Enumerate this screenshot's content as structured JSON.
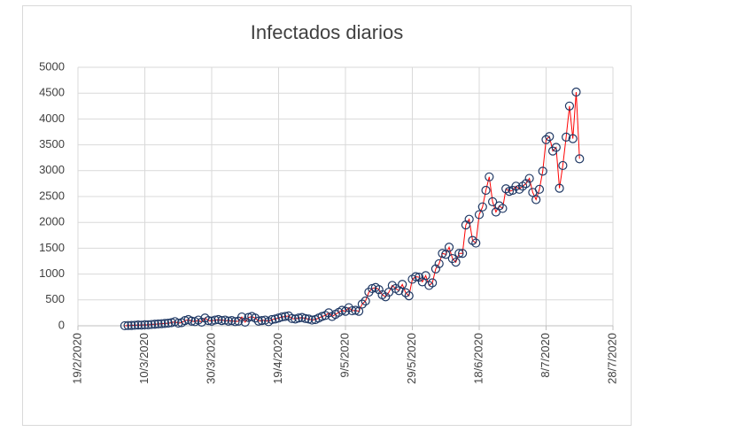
{
  "chart_data": {
    "type": "scatter-line",
    "title": "Infectados diarios",
    "x": [
      "2020-03-04",
      "2020-03-05",
      "2020-03-06",
      "2020-03-07",
      "2020-03-08",
      "2020-03-09",
      "2020-03-10",
      "2020-03-11",
      "2020-03-12",
      "2020-03-13",
      "2020-03-14",
      "2020-03-15",
      "2020-03-16",
      "2020-03-17",
      "2020-03-18",
      "2020-03-19",
      "2020-03-20",
      "2020-03-21",
      "2020-03-22",
      "2020-03-23",
      "2020-03-24",
      "2020-03-25",
      "2020-03-26",
      "2020-03-27",
      "2020-03-28",
      "2020-03-29",
      "2020-03-30",
      "2020-03-31",
      "2020-04-01",
      "2020-04-02",
      "2020-04-03",
      "2020-04-04",
      "2020-04-05",
      "2020-04-06",
      "2020-04-07",
      "2020-04-08",
      "2020-04-09",
      "2020-04-10",
      "2020-04-11",
      "2020-04-12",
      "2020-04-13",
      "2020-04-14",
      "2020-04-15",
      "2020-04-16",
      "2020-04-17",
      "2020-04-18",
      "2020-04-19",
      "2020-04-20",
      "2020-04-21",
      "2020-04-22",
      "2020-04-23",
      "2020-04-24",
      "2020-04-25",
      "2020-04-26",
      "2020-04-27",
      "2020-04-28",
      "2020-04-29",
      "2020-04-30",
      "2020-05-01",
      "2020-05-02",
      "2020-05-03",
      "2020-05-04",
      "2020-05-05",
      "2020-05-06",
      "2020-05-07",
      "2020-05-08",
      "2020-05-09",
      "2020-05-10",
      "2020-05-11",
      "2020-05-12",
      "2020-05-13",
      "2020-05-14",
      "2020-05-15",
      "2020-05-16",
      "2020-05-17",
      "2020-05-18",
      "2020-05-19",
      "2020-05-20",
      "2020-05-21",
      "2020-05-22",
      "2020-05-23",
      "2020-05-24",
      "2020-05-25",
      "2020-05-26",
      "2020-05-27",
      "2020-05-28",
      "2020-05-29",
      "2020-05-30",
      "2020-05-31",
      "2020-06-01",
      "2020-06-02",
      "2020-06-03",
      "2020-06-04",
      "2020-06-05",
      "2020-06-06",
      "2020-06-07",
      "2020-06-08",
      "2020-06-09",
      "2020-06-10",
      "2020-06-11",
      "2020-06-12",
      "2020-06-13",
      "2020-06-14",
      "2020-06-15",
      "2020-06-16",
      "2020-06-17",
      "2020-06-18",
      "2020-06-19",
      "2020-06-20",
      "2020-06-21",
      "2020-06-22",
      "2020-06-23",
      "2020-06-24",
      "2020-06-25",
      "2020-06-26",
      "2020-06-27",
      "2020-06-28",
      "2020-06-29",
      "2020-06-30",
      "2020-07-01",
      "2020-07-02",
      "2020-07-03",
      "2020-07-04",
      "2020-07-05",
      "2020-07-06",
      "2020-07-07",
      "2020-07-08",
      "2020-07-09",
      "2020-07-10",
      "2020-07-11",
      "2020-07-12",
      "2020-07-13",
      "2020-07-14",
      "2020-07-15",
      "2020-07-16",
      "2020-07-17",
      "2020-07-18"
    ],
    "series": [
      {
        "line_color": "#ff0000",
        "marker_color": "#1f3864",
        "values": [
          1,
          5,
          7,
          10,
          15,
          12,
          20,
          18,
          25,
          30,
          35,
          40,
          45,
          50,
          60,
          80,
          50,
          60,
          100,
          120,
          90,
          80,
          110,
          70,
          150,
          100,
          90,
          110,
          120,
          100,
          110,
          90,
          100,
          80,
          90,
          170,
          70,
          160,
          180,
          150,
          90,
          100,
          110,
          80,
          120,
          130,
          150,
          170,
          180,
          190,
          140,
          130,
          150,
          160,
          140,
          130,
          110,
          120,
          150,
          180,
          200,
          250,
          180,
          220,
          260,
          300,
          280,
          350,
          290,
          300,
          280,
          420,
          480,
          650,
          720,
          740,
          700,
          600,
          560,
          650,
          780,
          720,
          680,
          800,
          640,
          580,
          900,
          950,
          940,
          850,
          970,
          780,
          830,
          1100,
          1200,
          1400,
          1380,
          1520,
          1300,
          1230,
          1400,
          1400,
          1950,
          2060,
          1650,
          1600,
          2150,
          2300,
          2620,
          2880,
          2400,
          2200,
          2320,
          2270,
          2650,
          2600,
          2620,
          2700,
          2640,
          2700,
          2750,
          2850,
          2580,
          2440,
          2640,
          2990,
          3600,
          3660,
          3380,
          3450,
          2660,
          3100,
          3650,
          4250,
          3620,
          4520,
          3230
        ]
      }
    ],
    "xlim": [
      "2020-02-19",
      "2020-07-28"
    ],
    "xticks": [
      {
        "value": "2020-02-19",
        "label": "19/2/2020"
      },
      {
        "value": "2020-03-10",
        "label": "10/3/2020"
      },
      {
        "value": "2020-03-30",
        "label": "30/3/2020"
      },
      {
        "value": "2020-04-19",
        "label": "19/4/2020"
      },
      {
        "value": "2020-05-09",
        "label": "9/5/2020"
      },
      {
        "value": "2020-05-29",
        "label": "29/5/2020"
      },
      {
        "value": "2020-06-18",
        "label": "18/6/2020"
      },
      {
        "value": "2020-07-08",
        "label": "8/7/2020"
      },
      {
        "value": "2020-07-28",
        "label": "28/7/2020"
      }
    ],
    "ylim": [
      0,
      5000
    ],
    "yticks": [
      0,
      500,
      1000,
      1500,
      2000,
      2500,
      3000,
      3500,
      4000,
      4500,
      5000
    ],
    "grid": true
  }
}
